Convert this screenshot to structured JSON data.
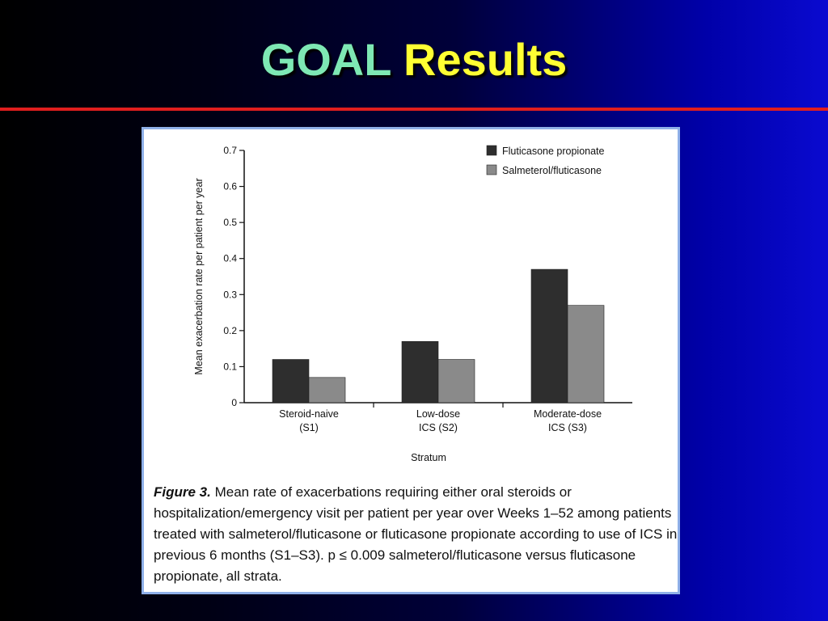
{
  "slide": {
    "title_part1": "GOAL",
    "title_part2": "Results",
    "title_color1": "#7ee8b4",
    "title_color2": "#ffff33",
    "rule_color": "#e01e1e"
  },
  "figure": {
    "label": "Figure 3.",
    "caption": "Mean rate of exacerbations requiring either oral steroids or hospitalization/emergency visit per patient per year over Weeks 1–52 among patients treated with salmeterol/fluticasone or fluticasone propionate according to use of ICS in previous 6 months (S1–S3). p ≤ 0.009 salmeterol/fluticasone versus fluticasone propionate, all strata."
  },
  "chart_data": {
    "type": "bar",
    "title": "",
    "xlabel": "Stratum",
    "ylabel": "Mean exacerbation rate per patient per year",
    "ylim": [
      0,
      0.7
    ],
    "yticks": [
      0,
      0.1,
      0.2,
      0.3,
      0.4,
      0.5,
      0.6,
      0.7
    ],
    "ytick_labels": [
      "0",
      "0.1",
      "0.2",
      "0.3",
      "0.4",
      "0.5",
      "0.6",
      "0.7"
    ],
    "categories": [
      [
        "Steroid-naive",
        "(S1)"
      ],
      [
        "Low-dose",
        "ICS (S2)"
      ],
      [
        "Moderate-dose",
        "ICS (S3)"
      ]
    ],
    "series": [
      {
        "name": "Fluticasone propionate",
        "color": "#2e2e2e",
        "values": [
          0.12,
          0.17,
          0.37
        ]
      },
      {
        "name": "Salmeterol/fluticasone",
        "color": "#8a8a8a",
        "values": [
          0.07,
          0.12,
          0.27
        ]
      }
    ],
    "legend_position": "top-right",
    "grid": false
  }
}
